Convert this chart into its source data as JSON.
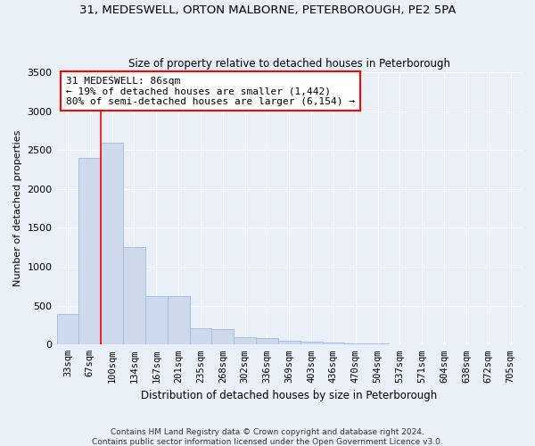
{
  "title": "31, MEDESWELL, ORTON MALBORNE, PETERBOROUGH, PE2 5PA",
  "subtitle": "Size of property relative to detached houses in Peterborough",
  "xlabel": "Distribution of detached houses by size in Peterborough",
  "ylabel": "Number of detached properties",
  "bar_color": "#ccdaeb",
  "bar_edgecolor": "#a8bedb",
  "categories": [
    "33sqm",
    "67sqm",
    "100sqm",
    "134sqm",
    "167sqm",
    "201sqm",
    "235sqm",
    "268sqm",
    "302sqm",
    "336sqm",
    "369sqm",
    "403sqm",
    "436sqm",
    "470sqm",
    "504sqm",
    "537sqm",
    "571sqm",
    "604sqm",
    "638sqm",
    "672sqm",
    "705sqm"
  ],
  "values": [
    390,
    2400,
    2600,
    1250,
    620,
    620,
    210,
    200,
    100,
    80,
    55,
    40,
    30,
    15,
    10,
    5,
    3,
    2,
    1,
    1,
    1
  ],
  "property_line_x": 1.5,
  "property_sqm": 86,
  "annotation_text": "31 MEDESWELL: 86sqm\n← 19% of detached houses are smaller (1,442)\n80% of semi-detached houses are larger (6,154) →",
  "ylim": [
    0,
    3500
  ],
  "yticks": [
    0,
    500,
    1000,
    1500,
    2000,
    2500,
    3000,
    3500
  ],
  "footer": "Contains HM Land Registry data © Crown copyright and database right 2024.\nContains public sector information licensed under the Open Government Licence v3.0.",
  "background_color": "#eaf0f8",
  "plot_bg_color": "#eaf0f8",
  "grid_color": "#ffffff",
  "title_fontsize": 9.5,
  "subtitle_fontsize": 8.5
}
